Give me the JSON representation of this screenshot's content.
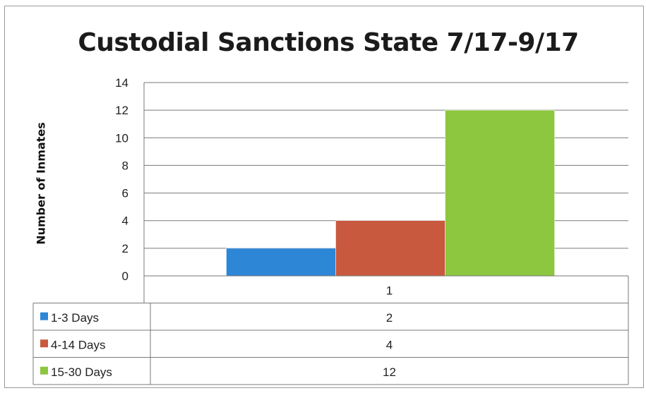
{
  "chart_data": {
    "type": "bar",
    "title": "Custodial Sanctions State 7/17-9/17",
    "xlabel": "",
    "ylabel": "Number of Inmates",
    "categories": [
      "1"
    ],
    "series": [
      {
        "name": "1-3 Days",
        "values": [
          2
        ],
        "color": "#2e86d6"
      },
      {
        "name": "4-14 Days",
        "values": [
          4
        ],
        "color": "#c8593f"
      },
      {
        "name": "15-30 Days",
        "values": [
          12
        ],
        "color": "#8dc63f"
      }
    ],
    "ylim": [
      0,
      14
    ],
    "yticks": [
      0,
      2,
      4,
      6,
      8,
      10,
      12,
      14
    ],
    "grid": true,
    "legend": "data-table"
  }
}
